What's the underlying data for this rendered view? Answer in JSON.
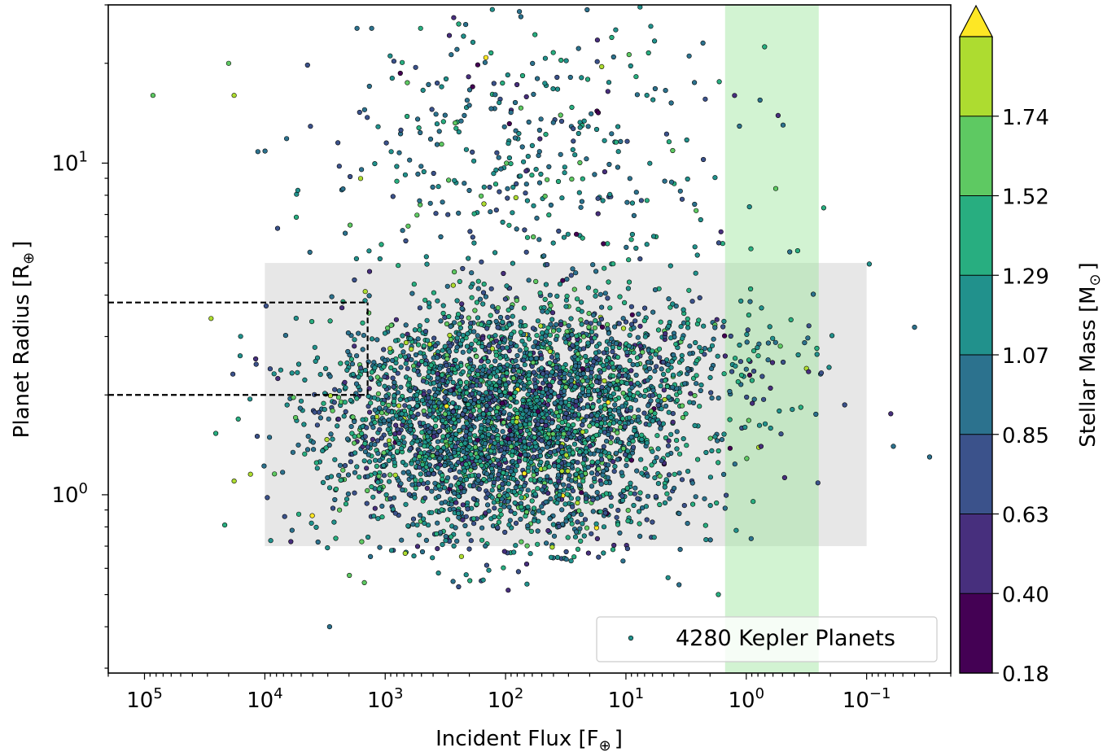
{
  "chart_data": {
    "type": "scatter",
    "title": "",
    "xlabel": {
      "text": "Incident Flux [F",
      "sub": "⊕",
      "close": "]"
    },
    "ylabel": {
      "text": "Planet Radius [R",
      "sub": "⊕",
      "close": "]"
    },
    "colorbar_label": {
      "text": "Stellar Mass [M",
      "sub": "⊙",
      "close": "]"
    },
    "x_scale": "log",
    "x_inverted": true,
    "xlim": [
      200000,
      0.02
    ],
    "y_scale": "log",
    "ylim": [
      0.29,
      30
    ],
    "x_ticks": [
      {
        "value": 100000,
        "base": "10",
        "exp": "5"
      },
      {
        "value": 10000,
        "base": "10",
        "exp": "4"
      },
      {
        "value": 1000,
        "base": "10",
        "exp": "3"
      },
      {
        "value": 100,
        "base": "10",
        "exp": "2"
      },
      {
        "value": 10,
        "base": "10",
        "exp": "1"
      },
      {
        "value": 1,
        "base": "10",
        "exp": "0"
      },
      {
        "value": 0.1,
        "base": "10",
        "exp": "−1"
      }
    ],
    "y_ticks": [
      {
        "value": 1,
        "base": "10",
        "exp": "0"
      },
      {
        "value": 10,
        "base": "10",
        "exp": "1"
      }
    ],
    "colorbar": {
      "cmap": "viridis",
      "min": 0.18,
      "max": 1.74,
      "extend": "max",
      "ticks": [
        "0.18",
        "0.40",
        "0.63",
        "0.85",
        "1.07",
        "1.29",
        "1.52",
        "1.74"
      ],
      "colors": [
        "#440154",
        "#472f7d",
        "#3b528b",
        "#2c728e",
        "#21918c",
        "#28ae80",
        "#5ec962",
        "#addc30"
      ],
      "extend_color": "#fde725"
    },
    "shaded_regions": [
      {
        "name": "gray-box",
        "x": [
          10000,
          0.1
        ],
        "y": [
          0.7,
          5.0
        ],
        "color": "#d3d3d3",
        "opacity": 0.55
      },
      {
        "name": "habitable-zone-band",
        "x": [
          1.5,
          0.25
        ],
        "y": [
          0.29,
          30
        ],
        "color": "#9be59b",
        "opacity": 0.45
      }
    ],
    "reference_lines": [
      {
        "x_range": [
          200000,
          1400
        ],
        "y": 3.8,
        "style": "dashed"
      },
      {
        "x_range": [
          200000,
          1400
        ],
        "y": 2.0,
        "style": "dashed"
      },
      {
        "x": 1400,
        "y_range": [
          2.0,
          3.8
        ],
        "style": "dashed"
      }
    ],
    "legend": {
      "label": "4280 Kepler Planets",
      "position": "lower right"
    },
    "series": [
      {
        "name": "4280 Kepler Planets",
        "count": 4280,
        "marker_color_by": "stellar_mass",
        "clusters": [
          {
            "x_center_log10": 2.0,
            "x_spread": 0.75,
            "y_center_log10": 0.2,
            "y_spread": 0.17,
            "share": 0.78
          },
          {
            "x_center_log10": 1.3,
            "x_spread": 0.9,
            "y_center_log10": 0.4,
            "y_spread": 0.1,
            "share": 0.12
          },
          {
            "x_center_log10": 1.8,
            "x_spread": 0.85,
            "y_center_log10": 1.0,
            "y_spread": 0.26,
            "share": 0.1
          }
        ],
        "sample_points": [
          {
            "x": 85000,
            "y": 16.0,
            "m": 1.35
          },
          {
            "x": 18000,
            "y": 16.0,
            "m": 1.65
          },
          {
            "x": 20000,
            "y": 20.0,
            "m": 1.45
          },
          {
            "x": 28000,
            "y": 3.4,
            "m": 1.7
          },
          {
            "x": 18000,
            "y": 1.1,
            "m": 1.7
          },
          {
            "x": 2900,
            "y": 0.4,
            "m": 0.85
          },
          {
            "x": 3.2,
            "y": 0.28,
            "m": 0.9
          },
          {
            "x": 0.03,
            "y": 1.3,
            "m": 0.9
          },
          {
            "x": 0.04,
            "y": 3.2,
            "m": 0.9
          },
          {
            "x": 0.06,
            "y": 1.4,
            "m": 0.9
          }
        ]
      }
    ]
  }
}
